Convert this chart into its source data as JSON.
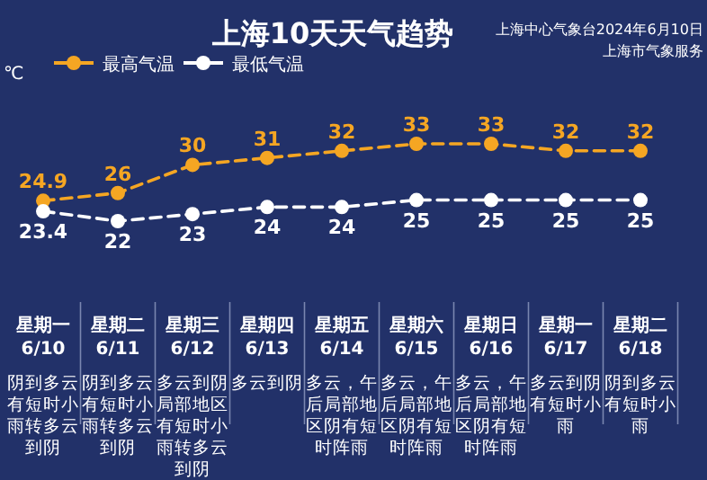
{
  "chart_data": {
    "type": "line",
    "title": "上海10天天气趋势",
    "ylabel": "℃",
    "categories": [
      "星期一 6/10",
      "星期二 6/11",
      "星期三 6/12",
      "星期四 6/13",
      "星期五 6/14",
      "星期六 6/15",
      "星期日 6/16",
      "星期一 6/17",
      "星期二 6/18"
    ],
    "series": [
      {
        "name": "最高气温",
        "color": "#f5a623",
        "values": [
          24.9,
          26,
          30,
          31,
          32,
          33,
          33,
          32,
          32
        ]
      },
      {
        "name": "最低气温",
        "color": "#ffffff",
        "values": [
          23.4,
          22,
          23,
          24,
          24,
          25,
          25,
          25,
          25
        ]
      }
    ],
    "data_labels": true,
    "legend": "top left",
    "marker": "circle",
    "line_style": "dashed",
    "annotations": [
      "上海中心气象台2024年6月10日",
      "上海市气象服务",
      "阴到多云有短时小雨转多云到阴",
      "阴到多云有短时小雨转多云到阴",
      "多云到阴局部地区有短时小雨转多云到阴",
      "多云到阴",
      "多云，午后局部地区阴有短时阵雨",
      "多云，午后局部地区阴有短时阵雨",
      "多云，午后局部地区阴有短时阵雨",
      "多云到阴有短时小雨",
      "阴到多云有短时小雨"
    ]
  }
}
